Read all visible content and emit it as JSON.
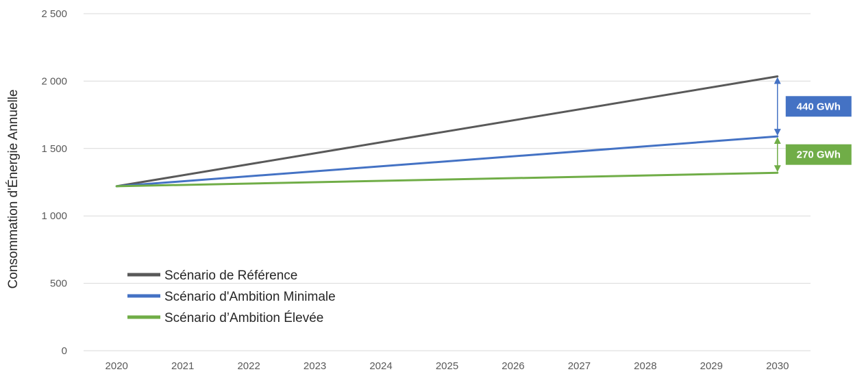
{
  "chart_data": {
    "type": "line",
    "title": "",
    "xlabel": "",
    "ylabel": "Consommation d'Énergie Annuelle",
    "x": [
      "2020",
      "2021",
      "2022",
      "2023",
      "2024",
      "2025",
      "2026",
      "2027",
      "2028",
      "2029",
      "2030"
    ],
    "ylim": [
      0,
      2500
    ],
    "yticks": [
      0,
      500,
      1000,
      1500,
      2000,
      2500
    ],
    "ytick_labels": [
      "0",
      "500",
      "1 000",
      "1 500",
      "2 000",
      "2 500"
    ],
    "grid": "horizontal",
    "legend_position": "bottom-left",
    "series": [
      {
        "name": "Scénario de Référence",
        "color": "#595959",
        "start": 1220,
        "end": 2035
      },
      {
        "name": "Scénario d'Ambition Minimale",
        "color": "#4472c4",
        "start": 1220,
        "end": 1590
      },
      {
        "name": "Scénario d’Ambition Élevée",
        "color": "#70ad47",
        "start": 1220,
        "end": 1320
      }
    ],
    "annotations": [
      {
        "text": "440 GWh",
        "color": "#4472c4",
        "x": "2030",
        "from": 2035,
        "to": 1590
      },
      {
        "text": "270 GWh",
        "color": "#70ad47",
        "x": "2030",
        "from": 1590,
        "to": 1320
      }
    ]
  }
}
